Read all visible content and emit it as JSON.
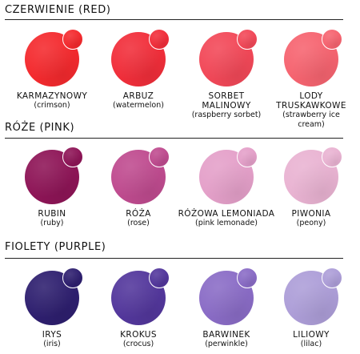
{
  "sections": [
    {
      "title": "CZERWIENIE (RED)",
      "swatches": [
        {
          "name": "KARMAZYNOWY",
          "en": "(crimson)",
          "color": "#f42a2e"
        },
        {
          "name": "ARBUZ",
          "en": "(watermelon)",
          "color": "#f12e3a"
        },
        {
          "name": "SORBET MALINOWY",
          "en": "(raspberry sorbet)",
          "color": "#f24858"
        },
        {
          "name": "LODY TRUSKAWKOWE",
          "en": "(strawberry ice cream)",
          "color": "#f66470"
        }
      ]
    },
    {
      "title": "RÓŻE (PINK)",
      "swatches": [
        {
          "name": "RUBIN",
          "en": "(ruby)",
          "color": "#8e1557"
        },
        {
          "name": "RÓŻA",
          "en": "(rose)",
          "color": "#bf4b8f"
        },
        {
          "name": "RÓŻOWA LEMONIADA",
          "en": "(pink lemonade)",
          "color": "#e4a0c9"
        },
        {
          "name": "PIWONIA",
          "en": "(peony)",
          "color": "#e9b3d2"
        }
      ]
    },
    {
      "title": "FIOLETY (PURPLE)",
      "swatches": [
        {
          "name": "IRYS",
          "en": "(iris)",
          "color": "#2e1f6f"
        },
        {
          "name": "KROKUS",
          "en": "(crocus)",
          "color": "#53379c"
        },
        {
          "name": "BARWINEK",
          "en": "(perwinkle)",
          "color": "#8a6cc6"
        },
        {
          "name": "LILIOWY",
          "en": "(lilac)",
          "color": "#ad9ed8"
        }
      ]
    }
  ]
}
